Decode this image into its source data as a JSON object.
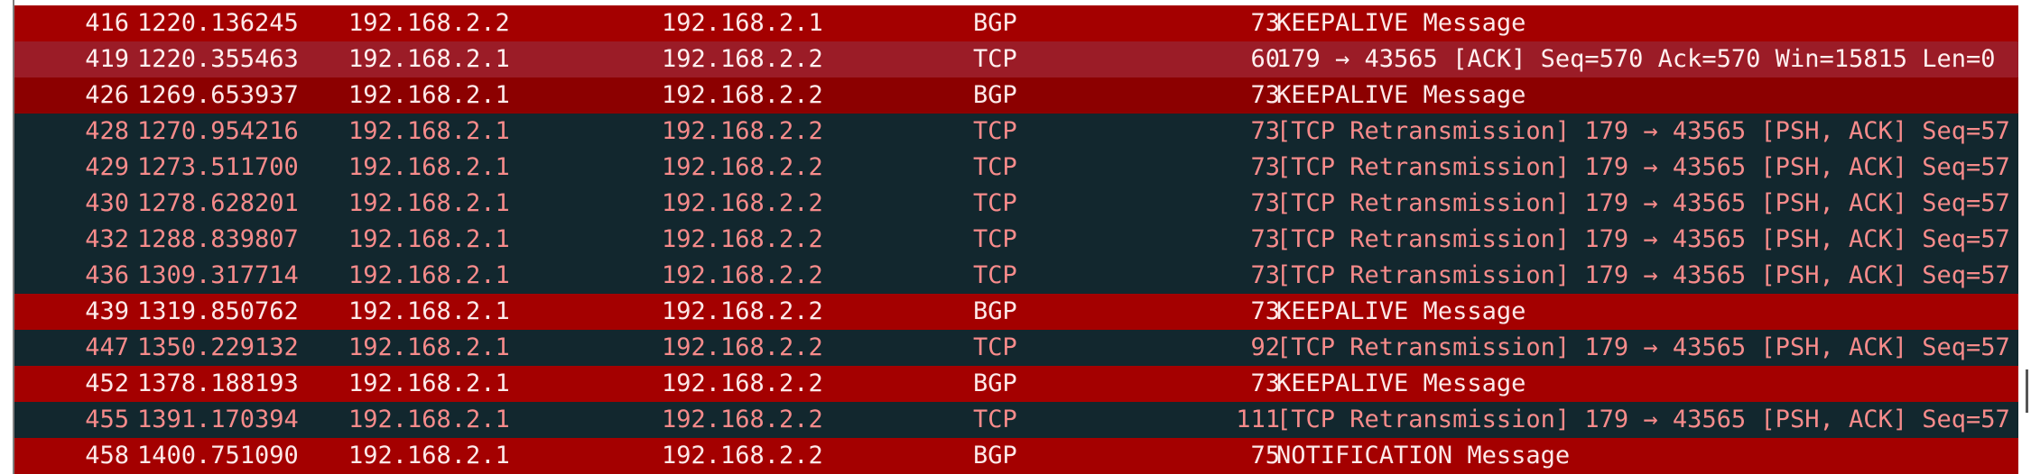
{
  "colors": {
    "bgp_bg": "#a40000",
    "bgp_selected_bg": "#8c0000",
    "tcp_ack_bg": "#9b1c27",
    "tcp_ack_fg": "#fff0f0",
    "retrans_bg": "#12272e",
    "retrans_fg": "#f78b8b",
    "light_fg": "#fde9e9"
  },
  "rows": [
    {
      "no": "416",
      "time": "1220.136245",
      "src": "192.168.2.2",
      "dst": "192.168.2.1",
      "proto": "BGP",
      "len": "73",
      "info": "KEEPALIVE Message",
      "style": "bgp"
    },
    {
      "no": "419",
      "time": "1220.355463",
      "src": "192.168.2.1",
      "dst": "192.168.2.2",
      "proto": "TCP",
      "len": "60",
      "info": "179 → 43565 [ACK] Seq=570 Ack=570 Win=15815 Len=0",
      "style": "tcpack"
    },
    {
      "no": "426",
      "time": "1269.653937",
      "src": "192.168.2.1",
      "dst": "192.168.2.2",
      "proto": "BGP",
      "len": "73",
      "info": "KEEPALIVE Message",
      "style": "bgpsel"
    },
    {
      "no": "428",
      "time": "1270.954216",
      "src": "192.168.2.1",
      "dst": "192.168.2.2",
      "proto": "TCP",
      "len": "73",
      "info": "[TCP Retransmission] 179 → 43565 [PSH, ACK] Seq=57",
      "style": "retrans"
    },
    {
      "no": "429",
      "time": "1273.511700",
      "src": "192.168.2.1",
      "dst": "192.168.2.2",
      "proto": "TCP",
      "len": "73",
      "info": "[TCP Retransmission] 179 → 43565 [PSH, ACK] Seq=57",
      "style": "retrans"
    },
    {
      "no": "430",
      "time": "1278.628201",
      "src": "192.168.2.1",
      "dst": "192.168.2.2",
      "proto": "TCP",
      "len": "73",
      "info": "[TCP Retransmission] 179 → 43565 [PSH, ACK] Seq=57",
      "style": "retrans"
    },
    {
      "no": "432",
      "time": "1288.839807",
      "src": "192.168.2.1",
      "dst": "192.168.2.2",
      "proto": "TCP",
      "len": "73",
      "info": "[TCP Retransmission] 179 → 43565 [PSH, ACK] Seq=57",
      "style": "retrans"
    },
    {
      "no": "436",
      "time": "1309.317714",
      "src": "192.168.2.1",
      "dst": "192.168.2.2",
      "proto": "TCP",
      "len": "73",
      "info": "[TCP Retransmission] 179 → 43565 [PSH, ACK] Seq=57",
      "style": "retrans"
    },
    {
      "no": "439",
      "time": "1319.850762",
      "src": "192.168.2.1",
      "dst": "192.168.2.2",
      "proto": "BGP",
      "len": "73",
      "info": "KEEPALIVE Message",
      "style": "bgp"
    },
    {
      "no": "447",
      "time": "1350.229132",
      "src": "192.168.2.1",
      "dst": "192.168.2.2",
      "proto": "TCP",
      "len": "92",
      "info": "[TCP Retransmission] 179 → 43565 [PSH, ACK] Seq=57",
      "style": "retrans"
    },
    {
      "no": "452",
      "time": "1378.188193",
      "src": "192.168.2.1",
      "dst": "192.168.2.2",
      "proto": "BGP",
      "len": "73",
      "info": "KEEPALIVE Message",
      "style": "bgp"
    },
    {
      "no": "455",
      "time": "1391.170394",
      "src": "192.168.2.1",
      "dst": "192.168.2.2",
      "proto": "TCP",
      "len": "111",
      "info": "[TCP Retransmission] 179 → 43565 [PSH, ACK] Seq=57",
      "style": "retrans"
    },
    {
      "no": "458",
      "time": "1400.751090",
      "src": "192.168.2.1",
      "dst": "192.168.2.2",
      "proto": "BGP",
      "len": "75",
      "info": "NOTIFICATION Message",
      "style": "bgp"
    }
  ]
}
